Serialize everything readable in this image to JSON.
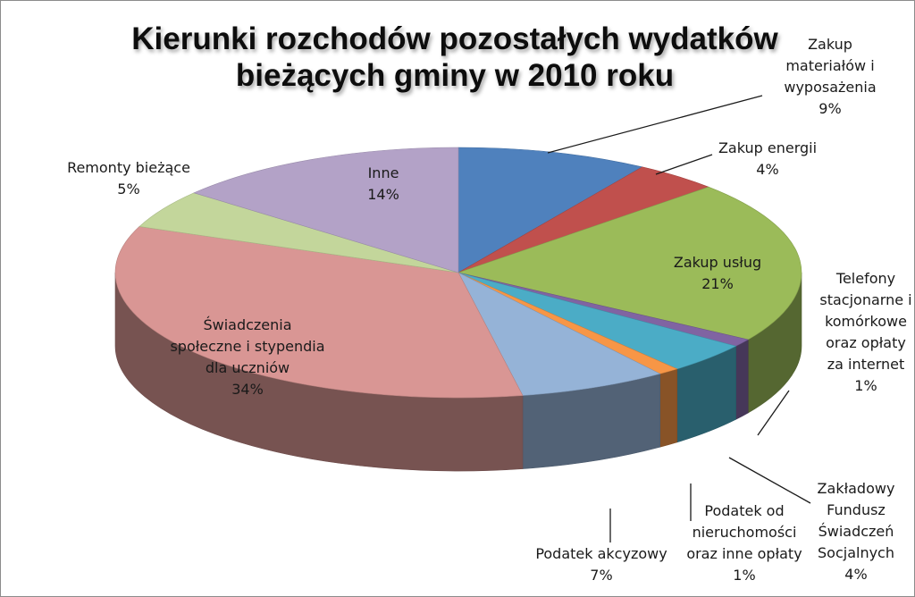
{
  "chart_data": {
    "type": "pie",
    "title_lines": [
      "Kierunki rozchodów pozostałych wydatków",
      "bieżących gminy w 2010 roku"
    ],
    "slices": [
      {
        "label_lines": [
          "Zakup",
          "materiałów i",
          "wyposażenia",
          "9%"
        ],
        "value": 9,
        "color": "#4f81bd"
      },
      {
        "label_lines": [
          "Zakup energii",
          "4%"
        ],
        "value": 4,
        "color": "#c0504d"
      },
      {
        "label_lines": [
          "Zakup usług",
          "21%"
        ],
        "value": 21,
        "color": "#9bbb59"
      },
      {
        "label_lines": [
          "Telefony",
          "stacjonarne i",
          "komórkowe",
          "oraz opłaty",
          "za internet",
          "1%"
        ],
        "value": 1,
        "color": "#8064a2"
      },
      {
        "label_lines": [
          "Zakładowy",
          "Fundusz",
          "Świadczeń",
          "Socjalnych",
          "4%"
        ],
        "value": 4,
        "color": "#4bacc6"
      },
      {
        "label_lines": [
          "Podatek od",
          "nieruchomości",
          "oraz inne opłaty",
          "1%"
        ],
        "value": 1,
        "color": "#f79646"
      },
      {
        "label_lines": [
          "Podatek akcyzowy",
          "7%"
        ],
        "value": 7,
        "color": "#95b3d7"
      },
      {
        "label_lines": [
          "Świadczenia",
          "społeczne i stypendia",
          "dla uczniów",
          "34%"
        ],
        "value": 34,
        "color": "#d99694"
      },
      {
        "label_lines": [
          "Remonty bieżące",
          "5%"
        ],
        "value": 5,
        "color": "#c3d69b"
      },
      {
        "label_lines": [
          "Inne",
          "14%"
        ],
        "value": 14,
        "color": "#b3a2c7"
      }
    ]
  }
}
